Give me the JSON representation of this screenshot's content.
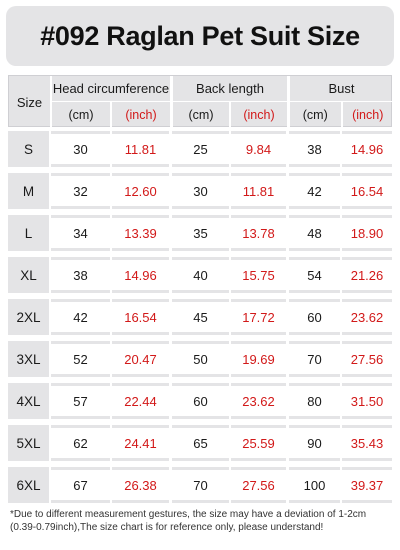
{
  "title": "#092  Raglan Pet Suit Size",
  "table": {
    "size_header": "Size",
    "groups": [
      {
        "title": "Head circumference",
        "unit_cm": "(cm)",
        "unit_inch": "(inch)"
      },
      {
        "title": "Back length",
        "unit_cm": "(cm)",
        "unit_inch": "(inch)"
      },
      {
        "title": "Bust",
        "unit_cm": "(cm)",
        "unit_inch": "(inch)"
      }
    ],
    "rows": [
      {
        "size": "S",
        "head_cm": "30",
        "head_in": "11.81",
        "back_cm": "25",
        "back_in": "9.84",
        "bust_cm": "38",
        "bust_in": "14.96"
      },
      {
        "size": "M",
        "head_cm": "32",
        "head_in": "12.60",
        "back_cm": "30",
        "back_in": "11.81",
        "bust_cm": "42",
        "bust_in": "16.54"
      },
      {
        "size": "L",
        "head_cm": "34",
        "head_in": "13.39",
        "back_cm": "35",
        "back_in": "13.78",
        "bust_cm": "48",
        "bust_in": "18.90"
      },
      {
        "size": "XL",
        "head_cm": "38",
        "head_in": "14.96",
        "back_cm": "40",
        "back_in": "15.75",
        "bust_cm": "54",
        "bust_in": "21.26"
      },
      {
        "size": "2XL",
        "head_cm": "42",
        "head_in": "16.54",
        "back_cm": "45",
        "back_in": "17.72",
        "bust_cm": "60",
        "bust_in": "23.62"
      },
      {
        "size": "3XL",
        "head_cm": "52",
        "head_in": "20.47",
        "back_cm": "50",
        "back_in": "19.69",
        "bust_cm": "70",
        "bust_in": "27.56"
      },
      {
        "size": "4XL",
        "head_cm": "57",
        "head_in": "22.44",
        "back_cm": "60",
        "back_in": "23.62",
        "bust_cm": "80",
        "bust_in": "31.50"
      },
      {
        "size": "5XL",
        "head_cm": "62",
        "head_in": "24.41",
        "back_cm": "65",
        "back_in": "25.59",
        "bust_cm": "90",
        "bust_in": "35.43"
      },
      {
        "size": "6XL",
        "head_cm": "67",
        "head_in": "26.38",
        "back_cm": "70",
        "back_in": "27.56",
        "bust_cm": "100",
        "bust_in": "39.37"
      }
    ]
  },
  "note": "*Due to different measurement gestures, the size may have a deviation of 1-2cm (0.39-0.79inch),The size chart is for reference only, please understand!",
  "colors": {
    "accent_red": "#d21919",
    "panel_gray": "#e4e4e6"
  }
}
